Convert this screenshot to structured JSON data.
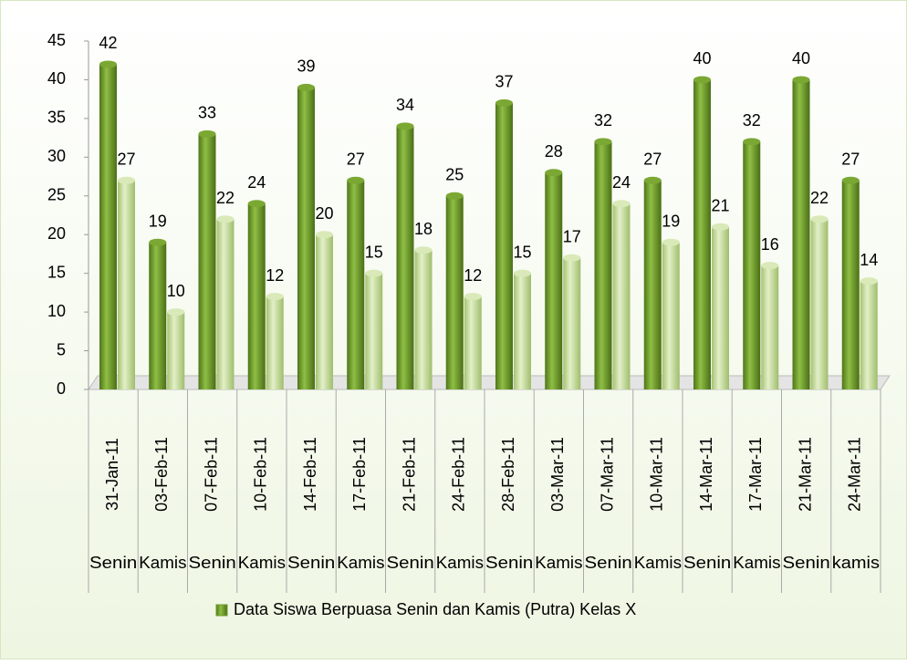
{
  "chart_data": {
    "type": "bar",
    "categories": [
      "31-Jan-11",
      "03-Feb-11",
      "07-Feb-11",
      "10-Feb-11",
      "14-Feb-11",
      "17-Feb-11",
      "21-Feb-11",
      "24-Feb-11",
      "28-Feb-11",
      "03-Mar-11",
      "07-Mar-11",
      "10-Mar-11",
      "14-Mar-11",
      "17-Mar-11",
      "21-Mar-11",
      "24-Mar-11"
    ],
    "day_labels": [
      "Senin",
      "Kamis",
      "Senin",
      "Kamis",
      "Senin",
      "Kamis",
      "Senin",
      "Kamis",
      "Senin",
      "Kamis",
      "Senin",
      "Kamis",
      "Senin",
      "Kamis",
      "Senin",
      "kamis"
    ],
    "series": [
      {
        "name": "Data Siswa Berpuasa Senin dan Kamis (Putra) Kelas X",
        "color": "#6f9a2c",
        "values": [
          42,
          19,
          33,
          24,
          39,
          27,
          34,
          25,
          37,
          28,
          32,
          27,
          40,
          32,
          40,
          27
        ]
      },
      {
        "color": "#c5dc98",
        "values": [
          27,
          10,
          22,
          12,
          20,
          15,
          18,
          12,
          15,
          17,
          24,
          19,
          21,
          16,
          22,
          14
        ]
      }
    ],
    "ylim": [
      0,
      45
    ],
    "yticks": [
      0,
      5,
      10,
      15,
      20,
      25,
      30,
      35,
      40,
      45
    ],
    "legend": "bottom"
  }
}
